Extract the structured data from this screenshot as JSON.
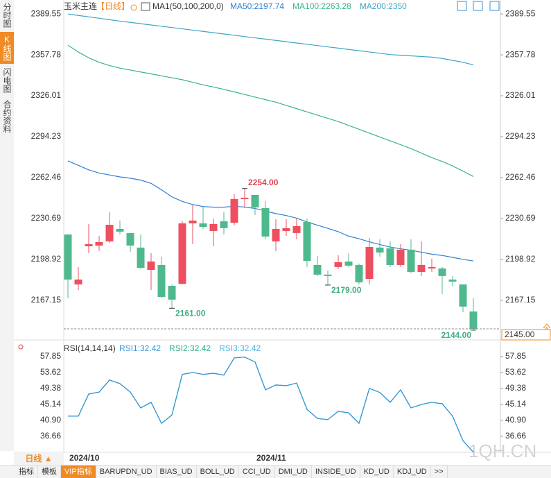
{
  "sidebar": {
    "tabs": [
      "分时图",
      "K线图",
      "闪电图",
      "合约资料"
    ],
    "active": 1
  },
  "chart_data": [
    {
      "type": "candlestick",
      "title": "玉米主连",
      "period": "【日线】",
      "indicator": "MA1(50,100,200,0)",
      "categories": [
        "2024/10",
        null,
        null,
        null,
        null,
        null,
        null,
        null,
        null,
        null,
        null,
        null,
        null,
        null,
        null,
        null,
        null,
        null,
        "2024/11",
        null,
        null,
        null,
        null,
        null,
        null,
        null,
        null,
        null,
        null,
        null,
        null,
        null,
        null,
        null,
        null,
        null,
        null,
        null,
        null,
        null
      ],
      "open": [
        2218.3,
        2179.5,
        2209.1,
        2209.7,
        2212.9,
        2222.6,
        2219.4,
        2208.1,
        2190.8,
        2194.6,
        2178.4,
        2180.0,
        2226.9,
        2226.9,
        2221.0,
        2228.5,
        2227.4,
        2245.8,
        2249.0,
        2238.8,
        2212.9,
        2221.0,
        2219.4,
        2228.0,
        2194.6,
        2187.1,
        2193.0,
        2197.3,
        2194.6,
        2183.8,
        2208.1,
        2207.5,
        2194.6,
        2206.5,
        2189.2,
        2191.9,
        2191.9,
        2183.3,
        2179.5,
        2158.5
      ],
      "high": [
        2218.3,
        2193.0,
        2226.4,
        2217.2,
        2235.5,
        2229.1,
        2219.4,
        2218.3,
        2203.8,
        2201.1,
        2179.5,
        2228.5,
        2240.9,
        2239.8,
        2230.7,
        2236.0,
        2249.5,
        2254.0,
        2249.0,
        2244.1,
        2230.2,
        2230.2,
        2230.7,
        2230.7,
        2201.6,
        2190.3,
        2202.2,
        2203.8,
        2195.7,
        2215.6,
        2214.5,
        2212.9,
        2210.8,
        2214.5,
        2212.9,
        2199.5,
        2193.0,
        2186.0,
        2179.5,
        2168.8
      ],
      "low": [
        2168.8,
        2175.2,
        2203.8,
        2205.4,
        2211.8,
        2218.3,
        2204.8,
        2191.4,
        2175.2,
        2168.8,
        2161.0,
        2179.5,
        2210.8,
        2222.6,
        2209.1,
        2218.3,
        2225.3,
        2238.8,
        2233.4,
        2214.5,
        2205.4,
        2217.2,
        2214.5,
        2193.0,
        2186.0,
        2179.0,
        2191.4,
        2193.0,
        2179.5,
        2179.5,
        2201.1,
        2193.0,
        2193.0,
        2188.2,
        2186.0,
        2189.2,
        2172.0,
        2177.9,
        2158.0,
        2144.0
      ],
      "close": [
        2183.3,
        2183.3,
        2210.8,
        2212.4,
        2225.8,
        2220.5,
        2209.7,
        2192.4,
        2197.3,
        2169.8,
        2167.7,
        2226.9,
        2229.1,
        2224.2,
        2226.4,
        2223.2,
        2245.8,
        2246.8,
        2239.3,
        2216.7,
        2222.6,
        2223.2,
        2224.8,
        2197.8,
        2187.1,
        2186.0,
        2196.8,
        2194.1,
        2181.1,
        2208.6,
        2204.3,
        2194.6,
        2206.5,
        2189.2,
        2194.6,
        2193.0,
        2186.0,
        2181.7,
        2162.3,
        2145.0
      ],
      "up_color": "#ee4f5f",
      "down_color": "#4fb98d",
      "series": [
        {
          "name": "MA50:2197.74",
          "color": "#2f7fd0",
          "values": [
            2275.4,
            2272,
            2268.5,
            2266,
            2264.5,
            2263,
            2262,
            2260.5,
            2258,
            2253,
            2247.5,
            2244,
            2241.5,
            2240,
            2239.5,
            2239.5,
            2240.2,
            2239.6,
            2238.5,
            2236.5,
            2234.5,
            2233,
            2231,
            2228,
            2225.5,
            2223,
            2220.5,
            2217,
            2215,
            2212.5,
            2210.5,
            2208.5,
            2207.2,
            2206,
            2204.5,
            2203,
            2202,
            2200.5,
            2199,
            2197.7
          ]
        },
        {
          "name": "MA100:2263.28",
          "color": "#38b487",
          "values": [
            2365.3,
            2360,
            2355.5,
            2352,
            2349.5,
            2347.5,
            2346,
            2344.5,
            2343,
            2341.5,
            2340,
            2338.5,
            2336.5,
            2334.5,
            2332.8,
            2331,
            2329,
            2327,
            2325,
            2323,
            2321,
            2318.5,
            2316,
            2313.5,
            2311,
            2308.5,
            2306,
            2303,
            2300,
            2297,
            2294,
            2291,
            2288,
            2285,
            2281.5,
            2278,
            2275,
            2271.5,
            2267.5,
            2263.3
          ]
        },
        {
          "name": "MA200:2350",
          "color": "#3aa6c4",
          "values": [
            2389.5,
            2388.4,
            2387.3,
            2386.2,
            2385.1,
            2384.0,
            2383.0,
            2382.0,
            2381.0,
            2380.0,
            2379.0,
            2378.0,
            2377.0,
            2376.0,
            2375.0,
            2374.0,
            2373.0,
            2372.0,
            2371.0,
            2370.0,
            2369.0,
            2368.0,
            2367.0,
            2366.0,
            2365.0,
            2364.0,
            2363.0,
            2362.0,
            2361.0,
            2360.0,
            2359.0,
            2358.0,
            2357.5,
            2357.0,
            2356.5,
            2356.0,
            2355.0,
            2353.5,
            2352.0,
            2350.0
          ]
        }
      ],
      "high_labels": [
        {
          "value": 2254,
          "label": "2254.00"
        }
      ],
      "low_labels": [
        {
          "value": 2161,
          "label": "2161.00"
        },
        {
          "value": 2179,
          "label": "2179.00"
        },
        {
          "value": 2144,
          "label": "2144.00"
        }
      ],
      "last_price": {
        "value": 2145,
        "label": "2145.00"
      },
      "ylim": [
        2138,
        2395
      ],
      "yticks": [
        2389.55,
        2357.78,
        2326.01,
        2294.23,
        2262.46,
        2230.69,
        2198.92,
        2167.15
      ]
    },
    {
      "type": "line",
      "title": "RSI(14,14,14)",
      "series": [
        {
          "name": "RSI3:32.42",
          "color": "#52b7e0",
          "values": [
            42.0,
            42.0,
            47.9,
            48.4,
            51.6,
            50.65,
            48.4,
            44.2,
            45.7,
            40.1,
            42.3,
            53.1,
            53.6,
            53.1,
            53.4,
            52.9,
            57.5,
            57.7,
            56.4,
            49.0,
            50.3,
            50.1,
            50.8,
            43.8,
            41.4,
            41.1,
            43.3,
            42.9,
            40.1,
            49.4,
            48.3,
            45.7,
            49.0,
            44.2,
            45.1,
            45.7,
            45.3,
            42.0,
            35.5,
            32.42
          ]
        },
        {
          "name": "RSI2:32.42",
          "color": "#35b08c",
          "values": [
            42.0,
            42.0,
            47.9,
            48.4,
            51.6,
            50.65,
            48.4,
            44.2,
            45.7,
            40.1,
            42.3,
            53.1,
            53.6,
            53.1,
            53.4,
            52.9,
            57.5,
            57.7,
            56.4,
            49.0,
            50.3,
            50.1,
            50.8,
            43.8,
            41.4,
            41.1,
            43.3,
            42.9,
            40.1,
            49.4,
            48.3,
            45.7,
            49.0,
            44.2,
            45.1,
            45.7,
            45.3,
            42.0,
            35.5,
            32.42
          ]
        },
        {
          "name": "RSI1:32.42",
          "color": "#3b96dc",
          "values": [
            42.0,
            42.0,
            47.9,
            48.4,
            51.6,
            50.65,
            48.4,
            44.2,
            45.7,
            40.1,
            42.3,
            53.1,
            53.6,
            53.1,
            53.4,
            52.9,
            57.5,
            57.7,
            56.4,
            49.0,
            50.3,
            50.1,
            50.8,
            43.8,
            41.4,
            41.1,
            43.3,
            42.9,
            40.1,
            49.4,
            48.3,
            45.7,
            49.0,
            44.2,
            45.1,
            45.7,
            45.3,
            42.0,
            35.5,
            32.42
          ]
        }
      ],
      "ylim": [
        32.4,
        61.7
      ],
      "yticks": [
        57.85,
        53.62,
        49.38,
        45.14,
        {
          "value": 40.9,
          "label": "40.90"
        },
        36.66
      ]
    }
  ],
  "footer": {
    "period": "日线",
    "tabs": [
      "指标",
      "模板",
      "VIP指标",
      "BARUPDN_UD",
      "BIAS_UD",
      "BOLL_UD",
      "CCI_UD",
      "DMI_UD",
      "INSIDE_UD",
      "KD_UD",
      "KDJ_UD",
      ">>"
    ],
    "active": 2
  },
  "watermark": "1QH.CN"
}
